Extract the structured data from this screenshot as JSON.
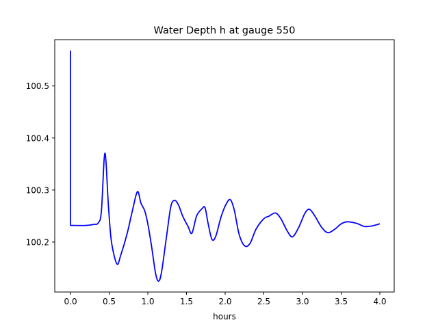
{
  "chart_data": {
    "type": "line",
    "title": "Water Depth h at gauge 550",
    "xlabel": "hours",
    "ylabel": "",
    "xlim": [
      -0.204,
      4.186
    ],
    "ylim": [
      100.104,
      100.589
    ],
    "xticks": [
      0.0,
      0.5,
      1.0,
      1.5,
      2.0,
      2.5,
      3.0,
      3.5,
      4.0
    ],
    "xtick_labels": [
      "0.0",
      "0.5",
      "1.0",
      "1.5",
      "2.0",
      "2.5",
      "3.0",
      "3.5",
      "4.0"
    ],
    "yticks": [
      100.2,
      100.3,
      100.4,
      100.5
    ],
    "ytick_labels": [
      "100.2",
      "100.3",
      "100.4",
      "100.5"
    ],
    "grid": false,
    "series": [
      {
        "name": "h",
        "color": "#0000ff",
        "x": [
          0,
          0,
          0.2,
          0.3,
          0.36,
          0.4,
          0.445,
          0.49,
          0.53,
          0.6,
          0.65,
          0.73,
          0.8,
          0.865,
          0.91,
          0.96,
          1.0,
          1.05,
          1.1,
          1.14,
          1.18,
          1.25,
          1.3,
          1.35,
          1.4,
          1.45,
          1.52,
          1.57,
          1.63,
          1.7,
          1.74,
          1.78,
          1.83,
          1.88,
          1.95,
          2.02,
          2.07,
          2.12,
          2.18,
          2.25,
          2.32,
          2.4,
          2.5,
          2.57,
          2.65,
          2.72,
          2.8,
          2.87,
          2.95,
          3.03,
          3.09,
          3.16,
          3.25,
          3.33,
          3.42,
          3.5,
          3.58,
          3.7,
          3.8,
          3.9,
          4.0
        ],
        "y": [
          100.568,
          100.232,
          100.232,
          100.234,
          100.237,
          100.26,
          100.371,
          100.27,
          100.2,
          100.158,
          100.175,
          100.215,
          100.26,
          100.297,
          100.275,
          100.26,
          100.235,
          100.19,
          100.14,
          100.125,
          100.145,
          100.22,
          100.27,
          100.28,
          100.27,
          100.25,
          100.23,
          100.217,
          100.25,
          100.264,
          100.266,
          100.235,
          100.205,
          100.212,
          100.25,
          100.275,
          100.281,
          100.26,
          100.215,
          100.193,
          100.197,
          100.225,
          100.245,
          100.25,
          100.256,
          100.245,
          100.222,
          100.21,
          100.228,
          100.255,
          100.263,
          100.25,
          100.228,
          100.218,
          100.225,
          100.235,
          100.239,
          100.236,
          100.23,
          100.231,
          100.235
        ]
      }
    ]
  }
}
